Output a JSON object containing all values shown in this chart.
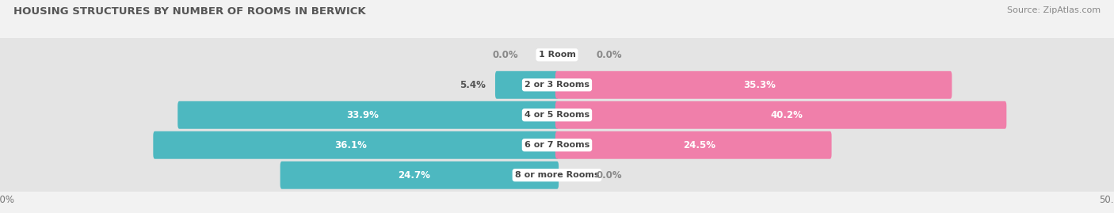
{
  "title": "HOUSING STRUCTURES BY NUMBER OF ROOMS IN BERWICK",
  "source": "Source: ZipAtlas.com",
  "categories": [
    "1 Room",
    "2 or 3 Rooms",
    "4 or 5 Rooms",
    "6 or 7 Rooms",
    "8 or more Rooms"
  ],
  "owner_values": [
    0.0,
    5.4,
    33.9,
    36.1,
    24.7
  ],
  "renter_values": [
    0.0,
    35.3,
    40.2,
    24.5,
    0.0
  ],
  "owner_color": "#4db8c0",
  "renter_color": "#f07faa",
  "bg_color": "#f2f2f2",
  "bar_bg_color": "#e4e4e4",
  "xlim": 50.0,
  "bar_height": 0.62,
  "figsize": [
    14.06,
    2.69
  ],
  "dpi": 100,
  "label_fontsize": 8.5,
  "cat_fontsize": 8.0,
  "title_fontsize": 9.5,
  "source_fontsize": 8.0,
  "legend_fontsize": 8.5
}
